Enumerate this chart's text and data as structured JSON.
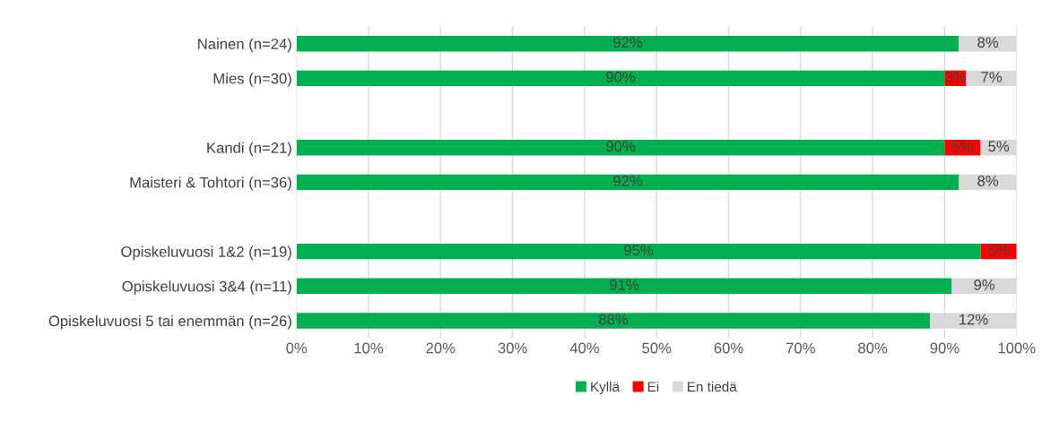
{
  "chart_data": {
    "type": "bar",
    "orientation": "horizontal",
    "stacked": true,
    "categories": [
      "Nainen (n=24)",
      "Mies (n=30)",
      null,
      "Kandi (n=21)",
      "Maisteri & Tohtori (n=36)",
      null,
      "Opiskeluvuosi 1&2 (n=19)",
      "Opiskeluvuosi 3&4 (n=11)",
      "Opiskeluvuosi 5 tai enemmän (n=26)"
    ],
    "series": [
      {
        "name": "Kyllä",
        "color": "#00b050",
        "values": [
          92,
          90,
          null,
          90,
          92,
          null,
          95,
          91,
          88
        ],
        "value_labels": [
          "92%",
          "90%",
          null,
          "90%",
          "92%",
          null,
          "95%",
          "91%",
          "88%"
        ]
      },
      {
        "name": "Ei",
        "color": "#ff0000",
        "values": [
          0,
          3,
          null,
          5,
          0,
          null,
          5,
          0,
          0
        ],
        "value_labels": [
          null,
          "3%",
          null,
          "5%",
          null,
          null,
          "5%",
          null,
          null
        ]
      },
      {
        "name": "En tiedä",
        "color": "#d9d9d9",
        "values": [
          8,
          7,
          null,
          5,
          8,
          null,
          0,
          9,
          12
        ],
        "value_labels": [
          "8%",
          "7%",
          null,
          "5%",
          "8%",
          null,
          null,
          "9%",
          "12%"
        ]
      }
    ],
    "xlim": [
      0,
      100
    ],
    "xticks": [
      {
        "value": 0,
        "label": "0%"
      },
      {
        "value": 10,
        "label": "10%"
      },
      {
        "value": 20,
        "label": "20%"
      },
      {
        "value": 30,
        "label": "30%"
      },
      {
        "value": 40,
        "label": "40%"
      },
      {
        "value": 50,
        "label": "50%"
      },
      {
        "value": 60,
        "label": "60%"
      },
      {
        "value": 70,
        "label": "70%"
      },
      {
        "value": 80,
        "label": "80%"
      },
      {
        "value": 90,
        "label": "90%"
      },
      {
        "value": 100,
        "label": "100%"
      }
    ],
    "grid": "x",
    "legend": "bottom"
  }
}
